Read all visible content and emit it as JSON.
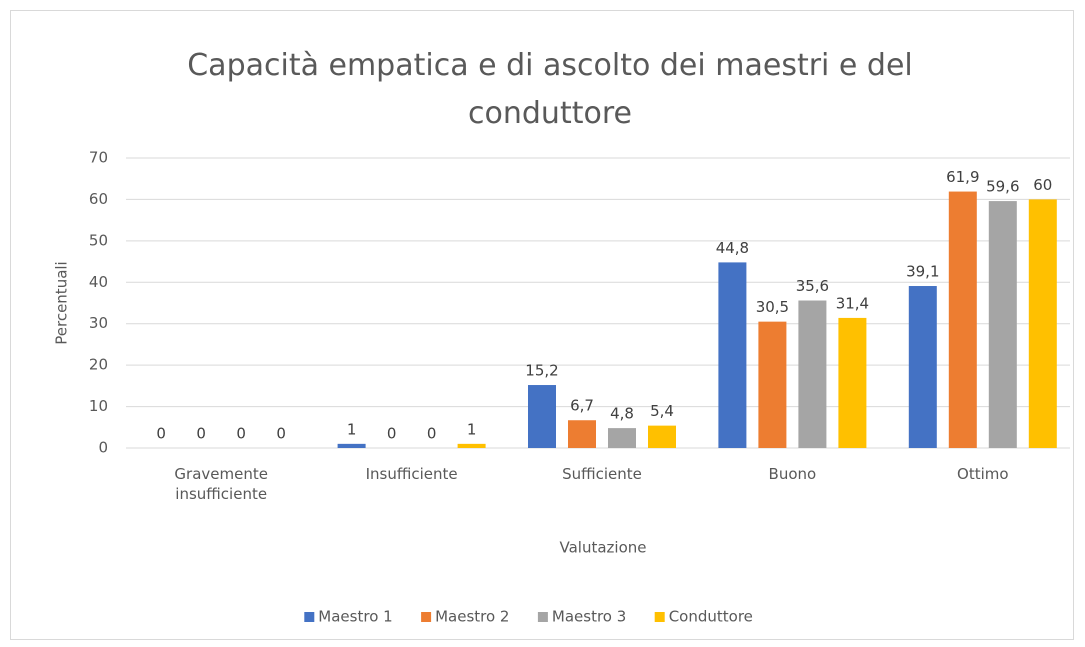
{
  "chart_data": {
    "type": "bar",
    "title": "Capacità empatica e di ascolto dei maestri e del conduttore",
    "x_label": "Valutazione",
    "y_label": "Percentuali",
    "categories": [
      "Gravemente insufficiente",
      "Insufficiente",
      "Sufficiente",
      "Buono",
      "Ottimo"
    ],
    "series": [
      {
        "name": "Maestro 1",
        "color": "#4472c4",
        "values": [
          0,
          1,
          15.2,
          44.8,
          39.1
        ],
        "value_labels": [
          "0",
          "1",
          "15,2",
          "44,8",
          "39,1"
        ]
      },
      {
        "name": "Maestro 2",
        "color": "#ed7d31",
        "values": [
          0,
          0,
          6.7,
          30.5,
          61.9
        ],
        "value_labels": [
          "0",
          "0",
          "6,7",
          "30,5",
          "61,9"
        ]
      },
      {
        "name": "Maestro 3",
        "color": "#a5a5a5",
        "values": [
          0,
          0,
          4.8,
          35.6,
          59.6
        ],
        "value_labels": [
          "0",
          "0",
          "4,8",
          "35,6",
          "59,6"
        ]
      },
      {
        "name": "Conduttore",
        "color": "#ffc000",
        "values": [
          0,
          1,
          5.4,
          31.4,
          60
        ],
        "value_labels": [
          "0",
          "1",
          "5,4",
          "31,4",
          "60"
        ]
      }
    ],
    "ylim": [
      0,
      70
    ],
    "yticks": [
      0,
      10,
      20,
      30,
      40,
      50,
      60,
      70
    ],
    "grid": true,
    "legend": "bottom"
  }
}
